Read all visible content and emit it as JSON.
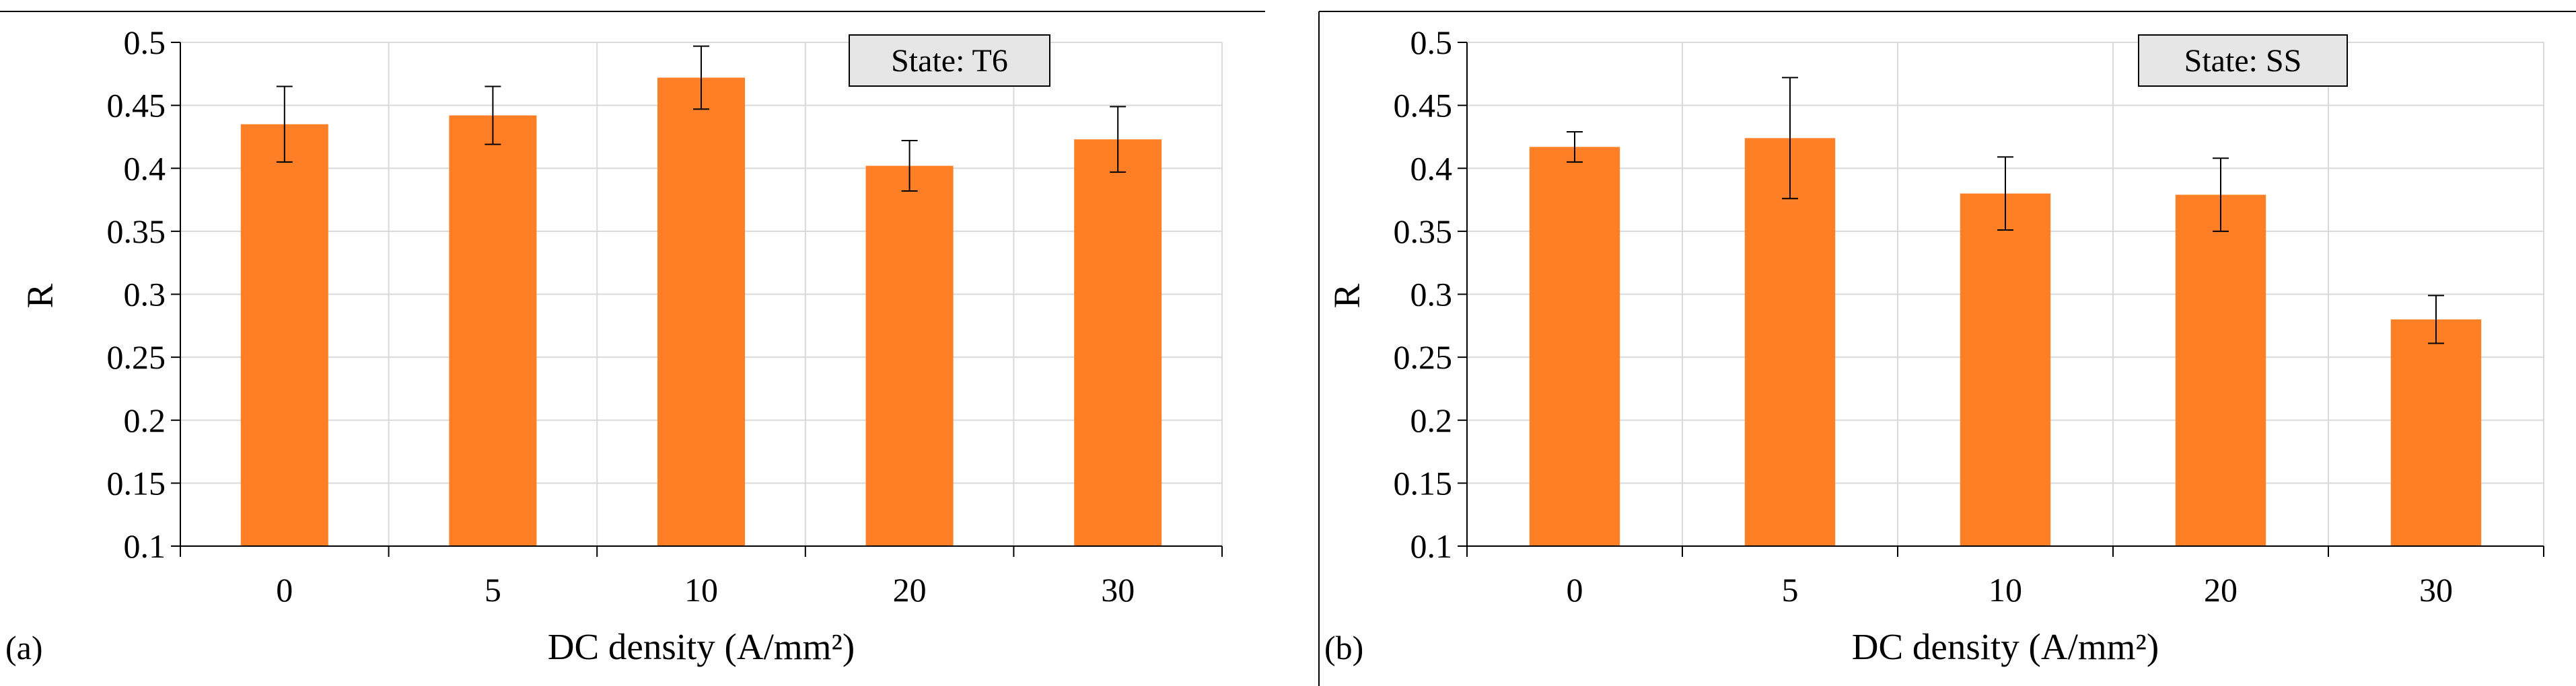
{
  "chart_data": [
    {
      "type": "bar",
      "panel_label": "(a)",
      "annotation": "State: T6",
      "categories": [
        "0",
        "5",
        "10",
        "20",
        "30"
      ],
      "values": [
        0.435,
        0.442,
        0.472,
        0.402,
        0.423
      ],
      "errors": [
        0.03,
        0.023,
        0.025,
        0.02,
        0.026
      ],
      "xlabel": "DC density (A/mm²)",
      "ylabel": "R",
      "ylim": [
        0.1,
        0.5
      ],
      "yticks": [
        "0.1",
        "0.15",
        "0.2",
        "0.25",
        "0.3",
        "0.35",
        "0.4",
        "0.45",
        "0.5"
      ],
      "grid": true,
      "bar_color": "#ff7f27"
    },
    {
      "type": "bar",
      "panel_label": "(b)",
      "annotation": "State: SS",
      "categories": [
        "0",
        "5",
        "10",
        "20",
        "30"
      ],
      "values": [
        0.417,
        0.424,
        0.38,
        0.379,
        0.28
      ],
      "errors": [
        0.012,
        0.048,
        0.029,
        0.029,
        0.019
      ],
      "xlabel": "DC density (A/mm²)",
      "ylabel": "R",
      "ylim": [
        0.1,
        0.5
      ],
      "yticks": [
        "0.1",
        "0.15",
        "0.2",
        "0.25",
        "0.3",
        "0.35",
        "0.4",
        "0.45",
        "0.5"
      ],
      "grid": true,
      "bar_color": "#ff7f27"
    }
  ]
}
